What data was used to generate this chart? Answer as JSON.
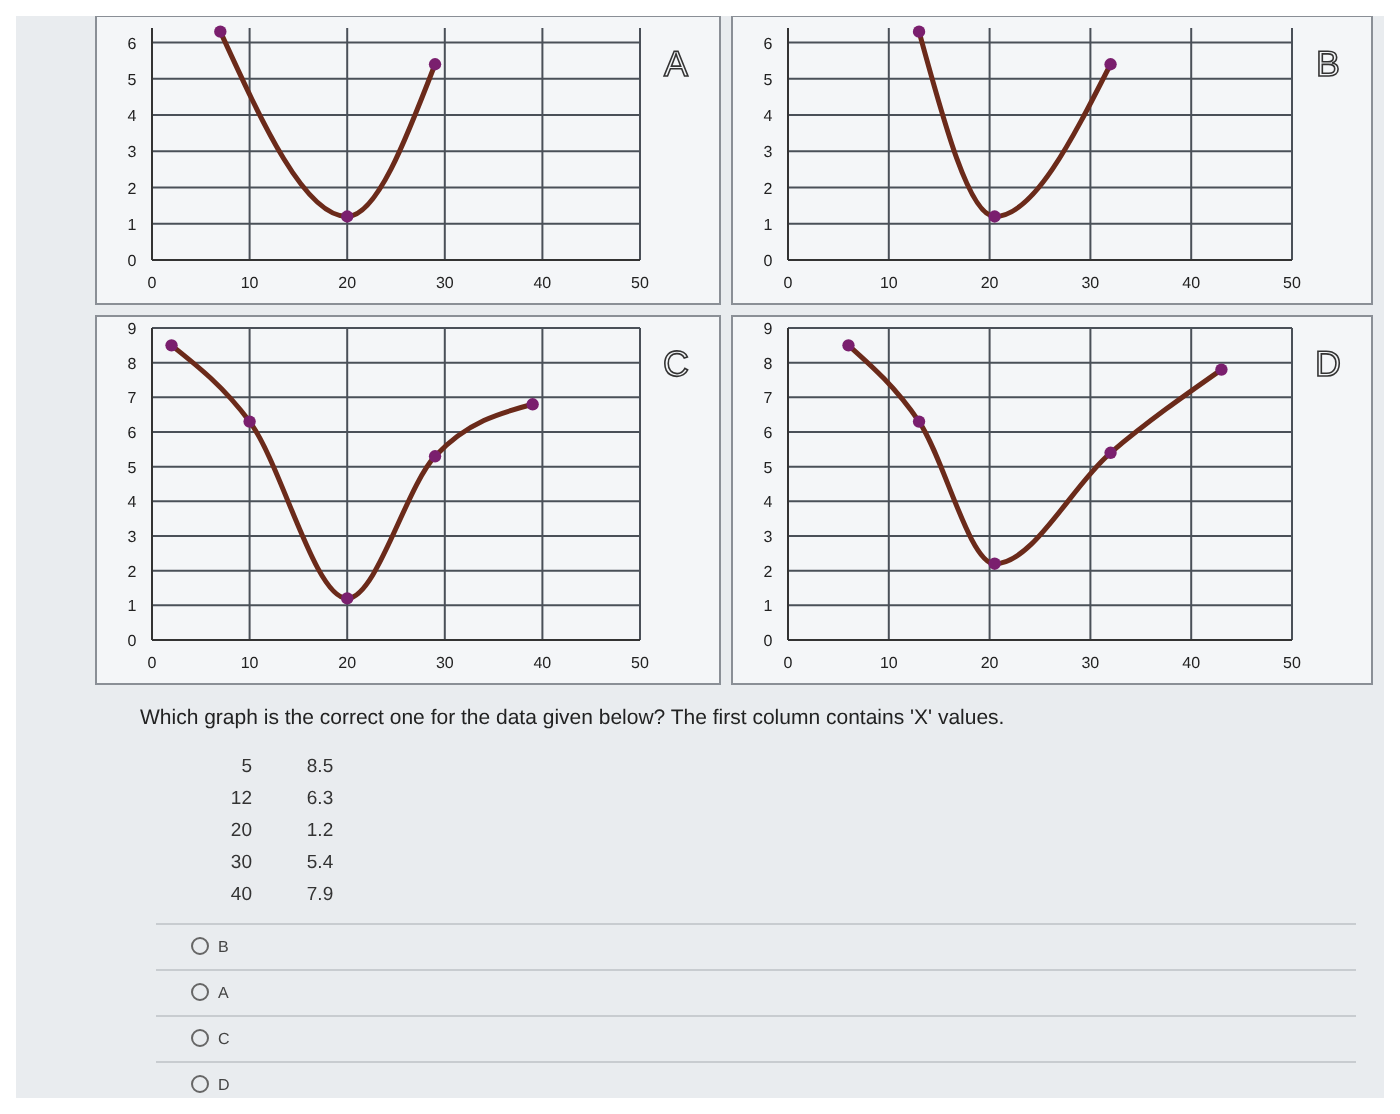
{
  "chart_data": [
    {
      "type": "line",
      "annotations": [
        "A"
      ],
      "xlim": [
        0,
        50
      ],
      "xticks": [
        0,
        10,
        20,
        30,
        40,
        50
      ],
      "ylim": [
        0,
        6.4
      ],
      "yticks": [
        0,
        1,
        2,
        3,
        4,
        5,
        6
      ],
      "grid": true,
      "marker": "circle",
      "series": [
        {
          "color": "#6b2a1a",
          "x": [
            7,
            20,
            29
          ],
          "values": [
            6.3,
            1.2,
            5.4
          ]
        }
      ]
    },
    {
      "type": "line",
      "annotations": [
        "B"
      ],
      "xlim": [
        0,
        50
      ],
      "xticks": [
        0,
        10,
        20,
        30,
        40,
        50
      ],
      "ylim": [
        0,
        6.4
      ],
      "yticks": [
        0,
        1,
        2,
        3,
        4,
        5,
        6
      ],
      "grid": true,
      "marker": "circle",
      "series": [
        {
          "color": "#6b2a1a",
          "x": [
            13,
            20.5,
            32
          ],
          "values": [
            6.3,
            1.2,
            5.4
          ]
        }
      ]
    },
    {
      "type": "line",
      "annotations": [
        "C"
      ],
      "xlim": [
        0,
        50
      ],
      "xticks": [
        0,
        10,
        20,
        30,
        40,
        50
      ],
      "ylim": [
        0,
        9
      ],
      "yticks": [
        0,
        1,
        2,
        3,
        4,
        5,
        6,
        7,
        8,
        9
      ],
      "grid": true,
      "marker": "circle",
      "series": [
        {
          "color": "#6b2a1a",
          "x": [
            2,
            10,
            20,
            29,
            39
          ],
          "values": [
            8.5,
            6.3,
            1.2,
            5.3,
            6.8
          ]
        }
      ]
    },
    {
      "type": "line",
      "annotations": [
        "D"
      ],
      "xlim": [
        0,
        50
      ],
      "xticks": [
        0,
        10,
        20,
        30,
        40,
        50
      ],
      "ylim": [
        0,
        9
      ],
      "yticks": [
        0,
        1,
        2,
        3,
        4,
        5,
        6,
        7,
        8,
        9
      ],
      "grid": true,
      "marker": "circle",
      "series": [
        {
          "color": "#6b2a1a",
          "x": [
            6,
            13,
            20.5,
            32,
            43
          ],
          "values": [
            8.5,
            6.3,
            2.2,
            5.4,
            7.8
          ]
        }
      ]
    },
    {
      "type": "other",
      "title": "Which graph is the correct one for the data given below? The first column contains 'X' values.",
      "annotations": [
        "5",
        "8.5",
        "12",
        "6.3",
        "20",
        "1.2",
        "30",
        "5.4",
        "40",
        "7.9",
        "B",
        "A",
        "C",
        "D"
      ]
    }
  ]
}
